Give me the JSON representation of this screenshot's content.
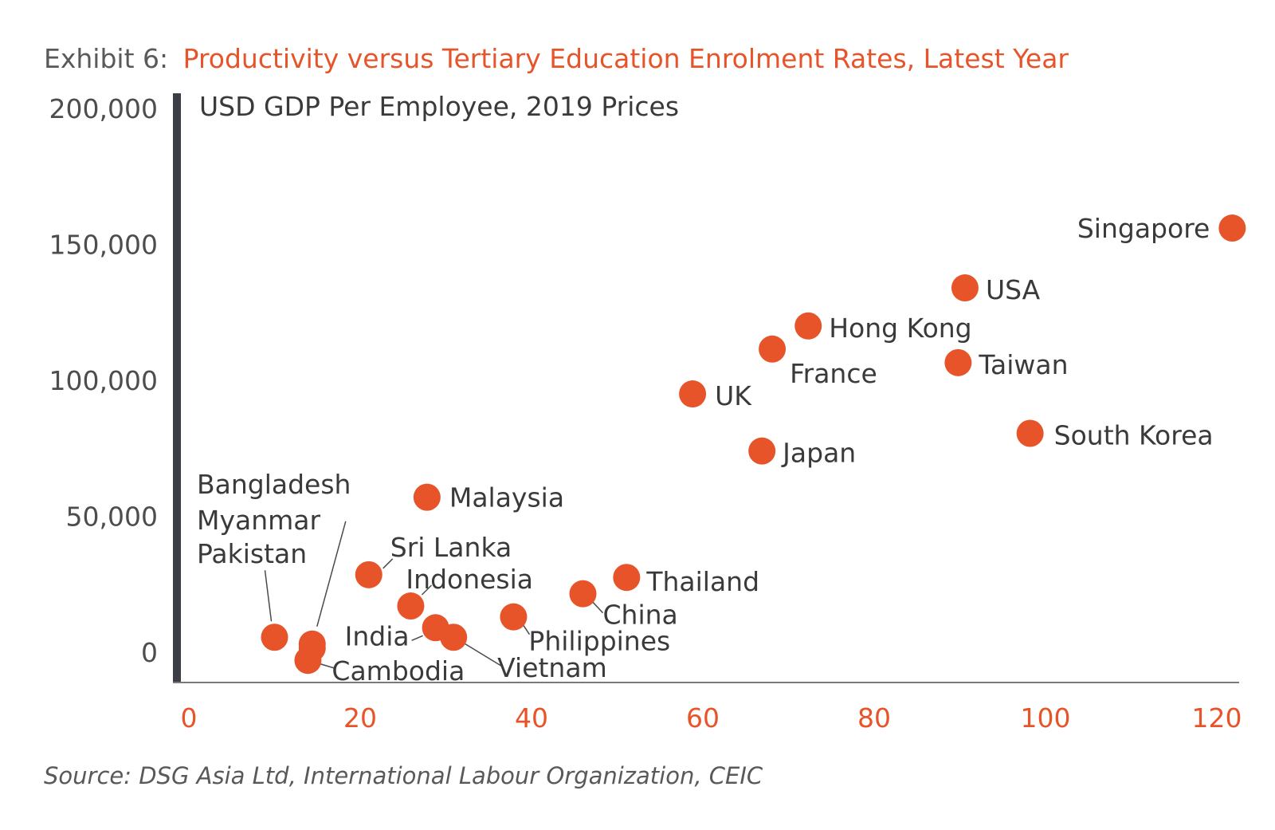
{
  "title": {
    "prefix": "Exhibit 6:",
    "main": "Productivity versus Tertiary Education Enrolment Rates, Latest Year"
  },
  "source": "Source: DSG Asia Ltd, International Labour Organization, CEIC",
  "colors": {
    "accent": "#e8542a",
    "axis": "#3b3e45",
    "text": "#3a3a3a"
  },
  "chart_data": {
    "type": "scatter",
    "ylabel": "USD GDP Per Employee, 2019 Prices",
    "xlabel": "",
    "xlim": [
      0,
      125
    ],
    "ylim": [
      -12000,
      200000
    ],
    "xticks": [
      "0",
      "20",
      "40",
      "60",
      "80",
      "100",
      "120"
    ],
    "xtick_values": [
      0,
      20,
      40,
      60,
      80,
      100,
      120
    ],
    "yticks": [
      "0",
      "50,000",
      "100,000",
      "150,000",
      "200,000"
    ],
    "ytick_values": [
      0,
      50000,
      100000,
      150000,
      200000
    ],
    "grid": false,
    "legend": "none",
    "points": [
      {
        "label": "Singapore",
        "x": 121.8,
        "y": 156000
      },
      {
        "label": "USA",
        "x": 90.6,
        "y": 134000
      },
      {
        "label": "Hong Kong",
        "x": 72.3,
        "y": 120000
      },
      {
        "label": "France",
        "x": 68.1,
        "y": 111500
      },
      {
        "label": "Taiwan",
        "x": 89.8,
        "y": 106500
      },
      {
        "label": "UK",
        "x": 58.8,
        "y": 95000
      },
      {
        "label": "South Korea",
        "x": 98.2,
        "y": 80500
      },
      {
        "label": "Japan",
        "x": 66.9,
        "y": 74000
      },
      {
        "label": "Malaysia",
        "x": 27.8,
        "y": 57000
      },
      {
        "label": "Sri Lanka",
        "x": 21.0,
        "y": 28500
      },
      {
        "label": "Thailand",
        "x": 51.1,
        "y": 27500
      },
      {
        "label": "China",
        "x": 46.0,
        "y": 21500
      },
      {
        "label": "Indonesia",
        "x": 25.9,
        "y": 17000
      },
      {
        "label": "Philippines",
        "x": 37.9,
        "y": 13000
      },
      {
        "label": "India",
        "x": 28.8,
        "y": 9000
      },
      {
        "label": "Vietnam",
        "x": 30.9,
        "y": 5500
      },
      {
        "label": "Pakistan",
        "x": 10.0,
        "y": 5500
      },
      {
        "label": "Myanmar",
        "x": 14.4,
        "y": 3000
      },
      {
        "label": "Bangladesh",
        "x": 14.4,
        "y": 1500
      },
      {
        "label": "Cambodia",
        "x": 13.9,
        "y": -3000
      }
    ]
  }
}
